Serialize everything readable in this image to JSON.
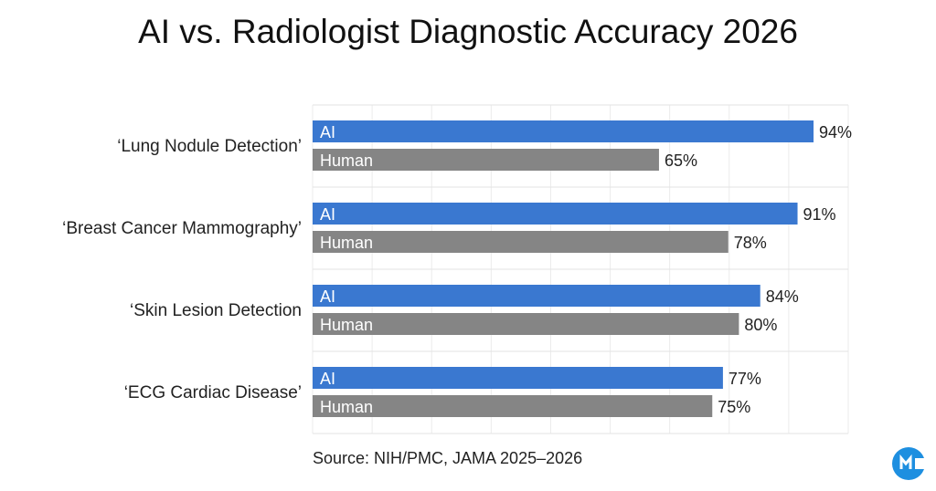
{
  "chart_data": {
    "type": "bar",
    "orientation": "horizontal",
    "title": "AI vs. Radiologist Diagnostic Accuracy 2026",
    "categories": [
      "‘Lung Nodule Detection’",
      "‘Breast Cancer Mammography’",
      "‘Skin Lesion Detection",
      "‘ECG Cardiac Disease’"
    ],
    "series": [
      {
        "name": "AI",
        "values": [
          94,
          91,
          84,
          77
        ],
        "color": "#3a78d0"
      },
      {
        "name": "Human",
        "values": [
          65,
          78,
          80,
          75
        ],
        "color": "#858585"
      }
    ],
    "value_suffix": "%",
    "xlim": [
      0,
      100
    ],
    "grid": true,
    "source": "Source: NIH/PMC, JAMA 2025–2026"
  },
  "logo": {
    "text": "M",
    "color": "#1e8fe0"
  }
}
